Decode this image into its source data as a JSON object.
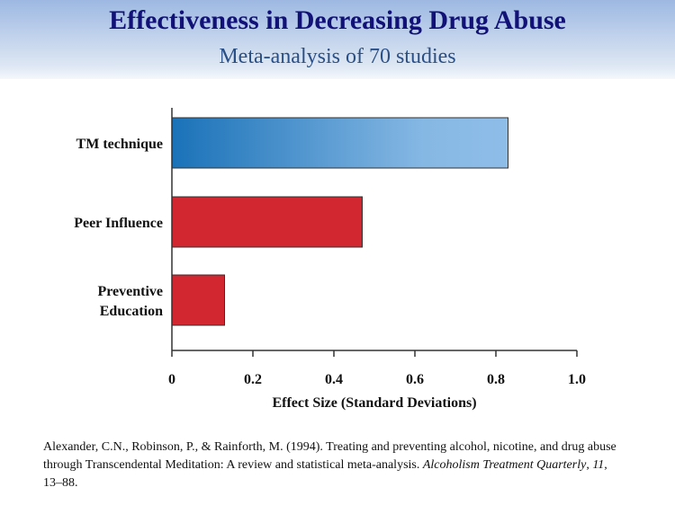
{
  "header": {
    "title": "Effectiveness in Decreasing Drug Abuse",
    "subtitle": "Meta-analysis of 70 studies"
  },
  "chart_data": {
    "type": "bar",
    "orientation": "horizontal",
    "categories": [
      [
        "TM technique"
      ],
      [
        "Peer Influence"
      ],
      [
        "Preventive",
        "Education"
      ]
    ],
    "values": [
      0.83,
      0.47,
      0.13
    ],
    "colors": [
      "gradient:#1a72b8-#8ebde8",
      "#d22630",
      "#d22630"
    ],
    "xlabel": "Effect Size (Standard Deviations)",
    "xlim": [
      0,
      1.0
    ],
    "xticks": [
      "0",
      "0.2",
      "0.4",
      "0.6",
      "0.8",
      "1.0"
    ],
    "grid": false
  },
  "citation": {
    "text": "Alexander,  C.N., Robinson, P., & Rainforth, M. (1994). Treating and preventing  alcohol, nicotine, and drug abuse through Transcendental  Meditation: A review and statistical meta-analysis. ",
    "journal": "Alcoholism Treatment Quarterly",
    "sep1": ", ",
    "volume": "11",
    "pages": ", 13–88."
  }
}
